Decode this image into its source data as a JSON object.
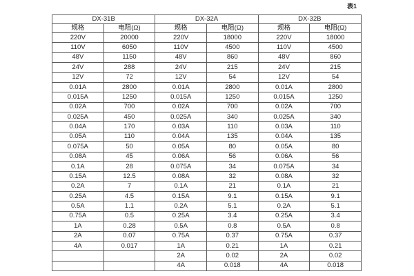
{
  "caption": "表1",
  "table": {
    "groups": [
      {
        "name": "DX-31B",
        "headers": [
          "规格",
          "电阻(Ω)"
        ],
        "rows": [
          [
            "220V",
            "20000"
          ],
          [
            "110V",
            "6050"
          ],
          [
            "48V",
            "1150"
          ],
          [
            "24V",
            "288"
          ],
          [
            "12V",
            "72"
          ],
          [
            "0.01A",
            "2800"
          ],
          [
            "0.015A",
            "1250"
          ],
          [
            "0.02A",
            "700"
          ],
          [
            "0.025A",
            "450"
          ],
          [
            "0.04A",
            "170"
          ],
          [
            "0.05A",
            "110"
          ],
          [
            "0.075A",
            "50"
          ],
          [
            "0.08A",
            "45"
          ],
          [
            "0.1A",
            "28"
          ],
          [
            "0.15A",
            "12.5"
          ],
          [
            "0.2A",
            "7"
          ],
          [
            "0.25A",
            "4.5"
          ],
          [
            "0.5A",
            "1.1"
          ],
          [
            "0.75A",
            "0.5"
          ],
          [
            "1A",
            "0.28"
          ],
          [
            "2A",
            "0.07"
          ],
          [
            "4A",
            "0.017"
          ],
          [
            "",
            ""
          ],
          [
            "",
            ""
          ]
        ]
      },
      {
        "name": "DX-32A",
        "headers": [
          "规格",
          "电阻(Ω)"
        ],
        "rows": [
          [
            "220V",
            "18000"
          ],
          [
            "110V",
            "4500"
          ],
          [
            "48V",
            "860"
          ],
          [
            "24V",
            "215"
          ],
          [
            "12V",
            "54"
          ],
          [
            "0.01A",
            "2800"
          ],
          [
            "0.015A",
            "1250"
          ],
          [
            "0.02A",
            "700"
          ],
          [
            "0.025A",
            "340"
          ],
          [
            "0.03A",
            "110"
          ],
          [
            "0.04A",
            "135"
          ],
          [
            "0.05A",
            "80"
          ],
          [
            "0.06A",
            "56"
          ],
          [
            "0.075A",
            "34"
          ],
          [
            "0.08A",
            "32"
          ],
          [
            "0.1A",
            "21"
          ],
          [
            "0.15A",
            "9.1"
          ],
          [
            "0.2A",
            "5.1"
          ],
          [
            "0.25A",
            "3.4"
          ],
          [
            "0.5A",
            "0.8"
          ],
          [
            "0.75A",
            "0.37"
          ],
          [
            "1A",
            "0.21"
          ],
          [
            "2A",
            "0.02"
          ],
          [
            "4A",
            "0.018"
          ]
        ]
      },
      {
        "name": "DX-32B",
        "headers": [
          "规格",
          "电阻(Ω)"
        ],
        "rows": [
          [
            "220V",
            "18000"
          ],
          [
            "110V",
            "4500"
          ],
          [
            "48V",
            "860"
          ],
          [
            "24V",
            "215"
          ],
          [
            "12V",
            "54"
          ],
          [
            "0.01A",
            "2800"
          ],
          [
            "0.015A",
            "1250"
          ],
          [
            "0.02A",
            "700"
          ],
          [
            "0.025A",
            "340"
          ],
          [
            "0.03A",
            "110"
          ],
          [
            "0.04A",
            "135"
          ],
          [
            "0.05A",
            "80"
          ],
          [
            "0.06A",
            "56"
          ],
          [
            "0.075A",
            "34"
          ],
          [
            "0.08A",
            "32"
          ],
          [
            "0.1A",
            "21"
          ],
          [
            "0.15A",
            "9.1"
          ],
          [
            "0.2A",
            "5.1"
          ],
          [
            "0.25A",
            "3.4"
          ],
          [
            "0.5A",
            "0.8"
          ],
          [
            "0.75A",
            "0.37"
          ],
          [
            "1A",
            "0.21"
          ],
          [
            "2A",
            "0.02"
          ],
          [
            "4A",
            "0.018"
          ]
        ]
      }
    ]
  }
}
